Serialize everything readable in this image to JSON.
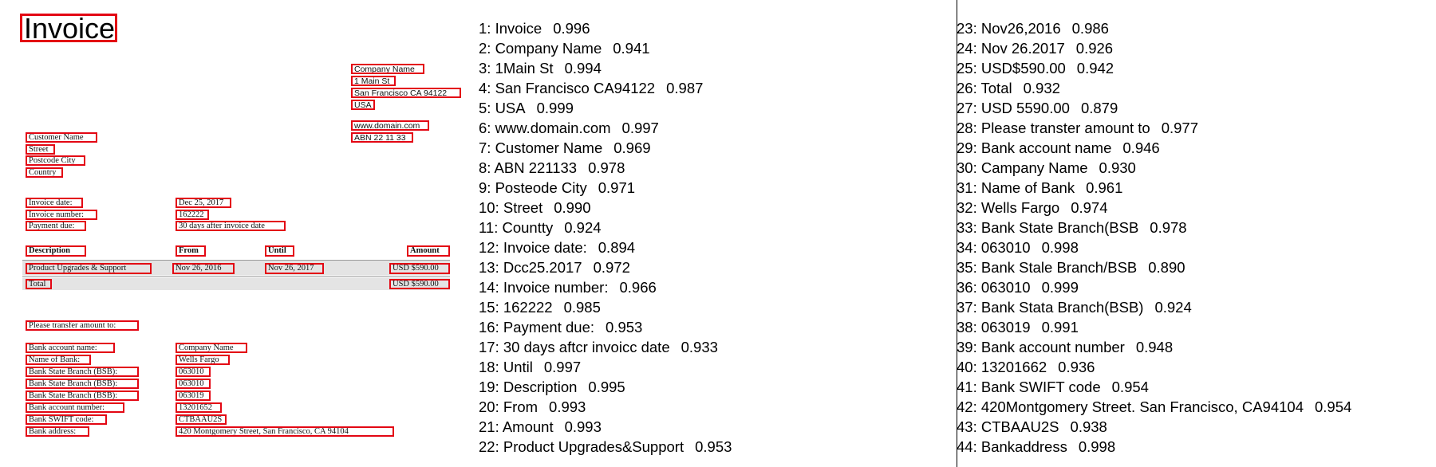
{
  "invoice": {
    "title": "Invoice",
    "company": [
      "Company Name",
      "1 Main St",
      "San Francisco CA 94122",
      "USA"
    ],
    "web": [
      "www.domain.com",
      "ABN 22 11 33"
    ],
    "customer": [
      "Customer Name",
      "Street",
      "Postcode City",
      "Country"
    ],
    "meta": {
      "labels": [
        "Invoice date:",
        "Invoice number:",
        "Payment due:"
      ],
      "values": [
        "Dec 25, 2017",
        "162222",
        "30 days after invoice date"
      ]
    },
    "table": {
      "headers": [
        "Description",
        "From",
        "Until",
        "Amount"
      ],
      "row": [
        "Product Upgrades & Support",
        "Nov 26, 2016",
        "Nov 26, 2017",
        "USD $590.00"
      ],
      "total_label": "Total",
      "total_value": "USD $590.00"
    },
    "transfer_note": "Please transfer amount to:",
    "bank": {
      "labels": [
        "Bank account name:",
        "Name of Bank:",
        "Bank State Branch (BSB):",
        "Bank State Branch (BSB):",
        "Bank State Branch (BSB):",
        "Bank account number:",
        "Bank SWIFT code:",
        "Bank address:"
      ],
      "values": [
        "Company Name",
        "Wells Fargo",
        "063010",
        "063010",
        "063019",
        "13201652",
        "CTBAAU2S",
        "420 Montgomery Street, San Francisco, CA 94104"
      ]
    }
  },
  "ocr_results": [
    {
      "label": "1: Invoice",
      "score": "0.996"
    },
    {
      "label": "2: Company Name",
      "score": "0.941"
    },
    {
      "label": "3: 1Main St",
      "score": "0.994"
    },
    {
      "label": "4: San Francisco CA94122",
      "score": "0.987"
    },
    {
      "label": "5: USA",
      "score": "0.999"
    },
    {
      "label": "6: www.domain.com",
      "score": "0.997"
    },
    {
      "label": "7: Customer Name",
      "score": "0.969"
    },
    {
      "label": "8: ABN 221133",
      "score": "0.978"
    },
    {
      "label": "9: Posteode City",
      "score": "0.971"
    },
    {
      "label": "10: Street",
      "score": "0.990"
    },
    {
      "label": "11: Countty",
      "score": "0.924"
    },
    {
      "label": "12: Invoice date:",
      "score": "0.894"
    },
    {
      "label": "13: Dcc25.2017",
      "score": "0.972"
    },
    {
      "label": "14: Invoice number:",
      "score": "0.966"
    },
    {
      "label": "15: 162222",
      "score": "0.985"
    },
    {
      "label": "16: Payment due:",
      "score": "0.953"
    },
    {
      "label": "17: 30 days aftcr invoicc date",
      "score": "0.933"
    },
    {
      "label": "18: Until",
      "score": "0.997"
    },
    {
      "label": "19: Description",
      "score": "0.995"
    },
    {
      "label": "20: From",
      "score": "0.993"
    },
    {
      "label": "21: Amount",
      "score": "0.993"
    },
    {
      "label": "22: Product Upgrades&Support",
      "score": "0.953"
    },
    {
      "label": "23: Nov26,2016",
      "score": "0.986"
    },
    {
      "label": "24: Nov 26.2017",
      "score": "0.926"
    },
    {
      "label": "25: USD$590.00",
      "score": "0.942"
    },
    {
      "label": "26: Total",
      "score": "0.932"
    },
    {
      "label": "27: USD 5590.00",
      "score": "0.879"
    },
    {
      "label": "28: Please transter amount to",
      "score": "0.977"
    },
    {
      "label": "29: Bank account name",
      "score": "0.946"
    },
    {
      "label": "30: Campany Name",
      "score": "0.930"
    },
    {
      "label": "31: Name of Bank",
      "score": "0.961"
    },
    {
      "label": "32: Wells Fargo",
      "score": "0.974"
    },
    {
      "label": "33: Bank State Branch(BSB",
      "score": "0.978"
    },
    {
      "label": "34: 063010",
      "score": "0.998"
    },
    {
      "label": "35: Bank Stale Branch/BSB",
      "score": "0.890"
    },
    {
      "label": "36: 063010",
      "score": "0.999"
    },
    {
      "label": "37: Bank Stata Branch(BSB)",
      "score": "0.924"
    },
    {
      "label": "38: 063019",
      "score": "0.991"
    },
    {
      "label": "39: Bank account number",
      "score": "0.948"
    },
    {
      "label": "40: 13201662",
      "score": "0.936"
    },
    {
      "label": "41: Bank SWIFT code",
      "score": "0.954"
    },
    {
      "label": "42: 420Montgomery Street. San Francisco, CA94104",
      "score": "0.954"
    },
    {
      "label": "43: CTBAAU2S",
      "score": "0.938"
    },
    {
      "label": "44: Bankaddress",
      "score": "0.998"
    }
  ]
}
